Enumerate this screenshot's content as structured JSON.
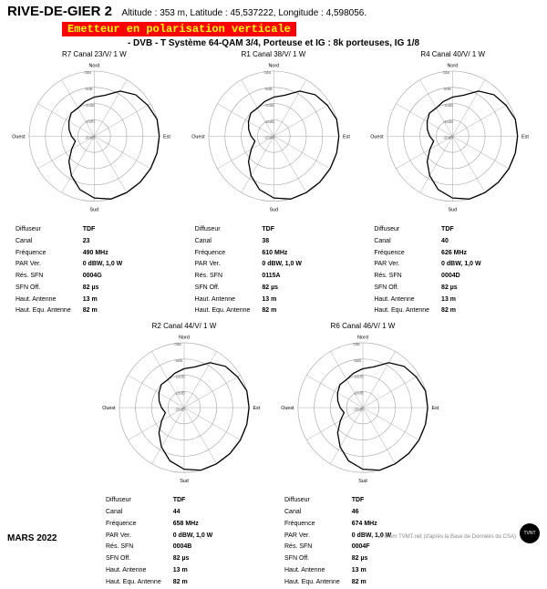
{
  "header": {
    "site": "RIVE-DE-GIER 2",
    "alt_label": "Altitude :",
    "alt": "353 m,",
    "lat_label": "Latitude :",
    "lat": "45,537222,",
    "lon_label": "Longitude :",
    "lon": "4,598056.",
    "warning": "Emetteur en polarisation verticale",
    "spec": "- DVB - T   Système 64-QAM 3/4,  Porteuse et IG : 8k porteuses, IG 1/8"
  },
  "polar": {
    "rings": [
      -20,
      -15,
      -10,
      -5,
      0
    ],
    "ring_labels": [
      "-20dB",
      "-15dB",
      "-10dB",
      "-5dB",
      "0dB"
    ],
    "dirs": {
      "n": "Nord",
      "s": "Sud",
      "e": "Est",
      "o": "Ouest"
    },
    "ring_color": "#999",
    "pattern_color": "#000",
    "pattern_width": 1.2,
    "pattern_angles": [
      0,
      15,
      30,
      45,
      60,
      75,
      90,
      105,
      120,
      135,
      150,
      165,
      180,
      195,
      210,
      225,
      240,
      255,
      270,
      285,
      300,
      315,
      330,
      345
    ],
    "pattern_db": [
      -8,
      -7,
      -4,
      -2,
      -1,
      0,
      0,
      0,
      0,
      0,
      0,
      0,
      -1,
      -3,
      -6,
      -9,
      -12,
      -14,
      -13,
      -12,
      -11,
      -10,
      -10,
      -9
    ]
  },
  "charts": [
    {
      "title": "R7  Canal 23/V/ 1 W",
      "rows": [
        [
          "Diffuseur",
          "TDF"
        ],
        [
          "Canal",
          "23"
        ],
        [
          "Fréquence",
          "490 MHz"
        ],
        [
          "PAR Ver.",
          "0 dBW, 1,0 W"
        ],
        [
          "Rés. SFN",
          "0004G"
        ],
        [
          "SFN Off.",
          "82 µs"
        ],
        [
          "Haut. Antenne",
          "13 m"
        ],
        [
          "Haut. Equ. Antenne",
          "82 m"
        ]
      ]
    },
    {
      "title": "R1  Canal 38/V/ 1 W",
      "rows": [
        [
          "Diffuseur",
          "TDF"
        ],
        [
          "Canal",
          "38"
        ],
        [
          "Fréquence",
          "610 MHz"
        ],
        [
          "PAR Ver.",
          "0 dBW, 1,0 W"
        ],
        [
          "Rés. SFN",
          "0115A"
        ],
        [
          "SFN Off.",
          "82 µs"
        ],
        [
          "Haut. Antenne",
          "13 m"
        ],
        [
          "Haut. Equ. Antenne",
          "82 m"
        ]
      ]
    },
    {
      "title": "R4  Canal 40/V/ 1 W",
      "rows": [
        [
          "Diffuseur",
          "TDF"
        ],
        [
          "Canal",
          "40"
        ],
        [
          "Fréquence",
          "626 MHz"
        ],
        [
          "PAR Ver.",
          "0 dBW, 1,0 W"
        ],
        [
          "Rés. SFN",
          "0004D"
        ],
        [
          "SFN Off.",
          "82 µs"
        ],
        [
          "Haut. Antenne",
          "13 m"
        ],
        [
          "Haut. Equ. Antenne",
          "82 m"
        ]
      ]
    },
    {
      "title": "R2  Canal 44/V/ 1 W",
      "rows": [
        [
          "Diffuseur",
          "TDF"
        ],
        [
          "Canal",
          "44"
        ],
        [
          "Fréquence",
          "658 MHz"
        ],
        [
          "PAR Ver.",
          "0 dBW, 1,0 W"
        ],
        [
          "Rés. SFN",
          "0004B"
        ],
        [
          "SFN Off.",
          "82 µs"
        ],
        [
          "Haut. Antenne",
          "13 m"
        ],
        [
          "Haut. Equ. Antenne",
          "82 m"
        ]
      ]
    },
    {
      "title": "R6  Canal 46/V/ 1 W",
      "rows": [
        [
          "Diffuseur",
          "TDF"
        ],
        [
          "Canal",
          "46"
        ],
        [
          "Fréquence",
          "674 MHz"
        ],
        [
          "PAR Ver.",
          "0 dBW, 1,0 W"
        ],
        [
          "Rés. SFN",
          "0004F"
        ],
        [
          "SFN Off.",
          "82 µs"
        ],
        [
          "Haut. Antenne",
          "13 m"
        ],
        [
          "Haut. Equ. Antenne",
          "82 m"
        ]
      ]
    }
  ],
  "footer": {
    "date": "MARS 2022",
    "source": "Forum TVMT.net (d'après la Base de Données du CSA)",
    "badge": "TVNT"
  }
}
